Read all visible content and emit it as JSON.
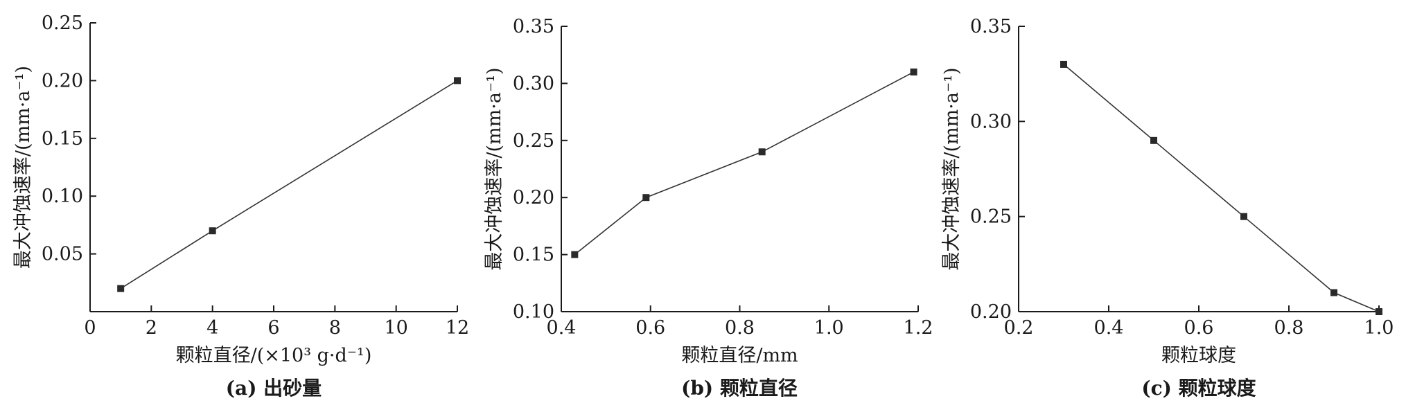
{
  "chart_data": [
    {
      "type": "line",
      "caption": "(a) 出砂量",
      "xlabel": "颗粒直径/(×10³ g·d⁻¹)",
      "ylabel": "最大冲蚀速率/(mm·a⁻¹)",
      "xlim": [
        0,
        12
      ],
      "ylim": [
        0,
        0.25
      ],
      "xticks": [
        "0",
        "2",
        "4",
        "6",
        "8",
        "10",
        "12"
      ],
      "yticks": [
        "0.05",
        "0.10",
        "0.15",
        "0.20",
        "0.25"
      ],
      "series": [
        {
          "x": [
            1,
            4,
            12
          ],
          "y": [
            0.02,
            0.07,
            0.2
          ]
        }
      ],
      "color": "#333333"
    },
    {
      "type": "line",
      "caption": "(b) 颗粒直径",
      "xlabel": "颗粒直径/mm",
      "ylabel": "最大冲蚀速率/(mm·a⁻¹)",
      "xlim": [
        0.4,
        1.2
      ],
      "ylim": [
        0.1,
        0.35
      ],
      "xticks": [
        "0.4",
        "0.6",
        "0.8",
        "1.0",
        "1.2"
      ],
      "yticks": [
        "0.10",
        "0.15",
        "0.20",
        "0.25",
        "0.30",
        "0.35"
      ],
      "series": [
        {
          "x": [
            0.43,
            0.59,
            0.85,
            1.19
          ],
          "y": [
            0.15,
            0.2,
            0.24,
            0.31
          ]
        }
      ],
      "color": "#333333"
    },
    {
      "type": "line",
      "caption": "(c) 颗粒球度",
      "xlabel": "颗粒球度",
      "ylabel": "最大冲蚀速率/(mm·a⁻¹)",
      "xlim": [
        0.2,
        1.0
      ],
      "ylim": [
        0.2,
        0.35
      ],
      "xticks": [
        "0.2",
        "0.4",
        "0.6",
        "0.8",
        "1.0"
      ],
      "yticks": [
        "0.20",
        "0.25",
        "0.30",
        "0.35"
      ],
      "series": [
        {
          "x": [
            0.3,
            0.5,
            0.7,
            0.9,
            1.0
          ],
          "y": [
            0.33,
            0.29,
            0.25,
            0.21,
            0.2
          ]
        }
      ],
      "color": "#333333"
    }
  ]
}
